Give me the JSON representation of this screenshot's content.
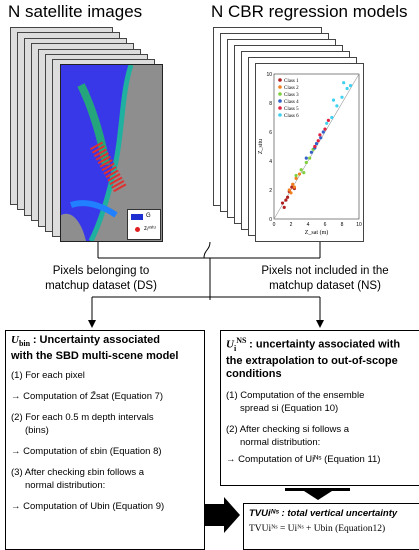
{
  "titles": {
    "left": "N satellite images",
    "right": "N CBR regression models"
  },
  "satellite": {
    "legend_g": "G",
    "legend_z": "zᵢⁿˢᵗᵘ"
  },
  "chart_data": {
    "type": "scatter",
    "xlabel": "Z_sat (m)",
    "ylabel": "Z_situ",
    "xticks": [
      "0",
      "2",
      "4",
      "6",
      "8",
      "10"
    ],
    "yticks": [
      "0",
      "2",
      "4",
      "6",
      "8",
      "10"
    ],
    "xlim": [
      0,
      10
    ],
    "ylim": [
      0,
      10
    ],
    "legend": [
      "Class 1",
      "Class 2",
      "Class 3",
      "Class 4",
      "Class 5",
      "Class 6"
    ],
    "colors": [
      "#b02020",
      "#f08020",
      "#80d040",
      "#3060c8",
      "#e02040",
      "#40d0f0"
    ],
    "series": [
      {
        "name": "Class 1",
        "x": [
          1.0,
          1.4,
          1.8,
          2.1,
          2.4,
          1.2,
          1.6
        ],
        "y": [
          1.1,
          1.3,
          1.9,
          2.2,
          2.1,
          0.8,
          1.5
        ]
      },
      {
        "name": "Class 2",
        "x": [
          1.8,
          2.2,
          2.6,
          3.0,
          2.4,
          2.0
        ],
        "y": [
          2.0,
          2.4,
          2.8,
          3.1,
          2.2,
          1.8
        ]
      },
      {
        "name": "Class 3",
        "x": [
          2.6,
          3.2,
          3.8,
          4.2,
          4.6,
          3.5
        ],
        "y": [
          3.0,
          3.4,
          3.9,
          4.2,
          4.8,
          3.2
        ]
      },
      {
        "name": "Class 4",
        "x": [
          3.8,
          4.4,
          5.0,
          5.5,
          4.8,
          5.8
        ],
        "y": [
          4.2,
          4.6,
          5.2,
          5.6,
          4.9,
          6.0
        ]
      },
      {
        "name": "Class 5",
        "x": [
          4.8,
          5.4,
          6.0,
          6.4,
          5.2
        ],
        "y": [
          5.0,
          5.8,
          6.2,
          6.8,
          5.4
        ]
      },
      {
        "name": "Class 6",
        "x": [
          6.2,
          6.8,
          7.4,
          8.0,
          8.6,
          7.0,
          8.2,
          9.0
        ],
        "y": [
          6.6,
          7.0,
          7.8,
          8.4,
          9.0,
          8.2,
          9.4,
          9.2
        ]
      }
    ]
  },
  "mid_labels": {
    "left": [
      "Pixels belonging to",
      "matchup dataset (DS)"
    ],
    "right": [
      "Pixels not included in the",
      "matchup dataset (NS)"
    ]
  },
  "left_box": {
    "sym": "U",
    "sub": "bin",
    "title_rest": ": Uncertainty associated",
    "title_line2": "with the SBD multi-scene model",
    "steps": [
      "(1) For each pixel",
      "→ Computation of Z̄sat (Equation 7)",
      "(2) For each 0.5 m depth intervals",
      "(bins)",
      "→ Computation of εbin (Equation 8)",
      "(3) After checking εbin follows a",
      "normal distribution:",
      "→ Computation of Ubin (Equation 9)"
    ]
  },
  "right_box": {
    "sym": "U",
    "sub": "i",
    "sup": "NS",
    "title_rest": ": uncertainty associated with",
    "title_line2": "the extrapolation to out-of-scope",
    "title_line3": "conditions",
    "steps": [
      "(1) Computation of the ensemble",
      "spread si (Equation 10)",
      "(2) After checking si follows a",
      "normal distribution:",
      "→ Computation of Uiᴺˢ (Equation 11)"
    ]
  },
  "tvu_box": {
    "title": "TVUiᴺˢ : total vertical uncertainty",
    "equation": "TVUiᴺˢ = Uiᴺˢ + Ubin (Equation12)"
  }
}
